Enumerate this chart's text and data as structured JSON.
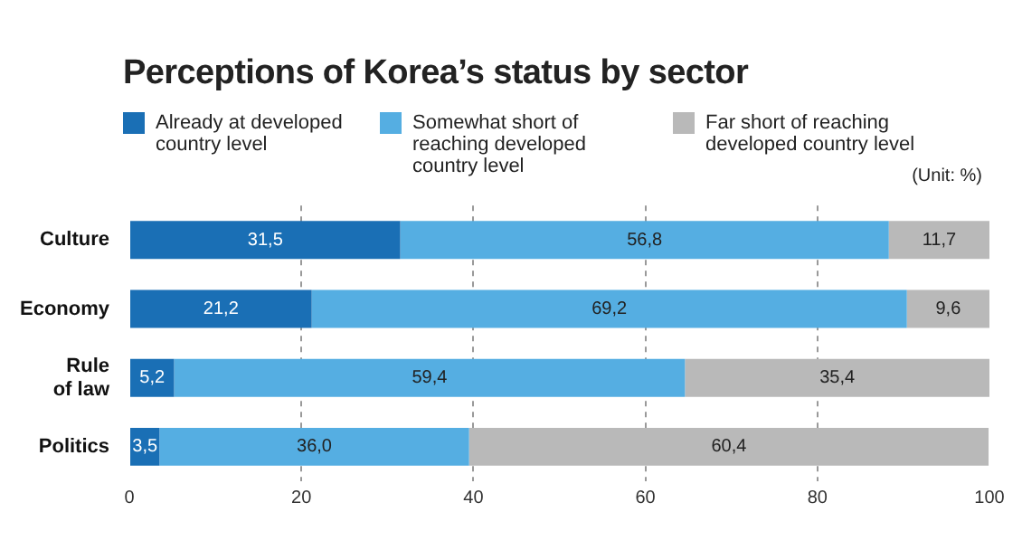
{
  "chart_data": {
    "type": "bar",
    "orientation": "horizontal",
    "stacked": true,
    "title": "Perceptions of Korea’s status by sector",
    "categories": [
      "Culture",
      "Economy",
      "Rule of law",
      "Politics"
    ],
    "series": [
      {
        "name": "Already at developed country level",
        "color": "#1a6fb5",
        "values": [
          31.5,
          21.2,
          5.2,
          3.5
        ],
        "value_labels": [
          "31,5",
          "21,2",
          "5,2",
          "3,5"
        ]
      },
      {
        "name": "Somewhat short of reaching developed country level",
        "color": "#55aee2",
        "values": [
          56.8,
          69.2,
          59.4,
          36.0
        ],
        "value_labels": [
          "56,8",
          "69,2",
          "59,4",
          "36,0"
        ]
      },
      {
        "name": "Far short of reaching developed country level",
        "color": "#b9b9b9",
        "values": [
          11.7,
          9.6,
          35.4,
          60.4
        ],
        "value_labels": [
          "11,7",
          "9,6",
          "35,4",
          "60,4"
        ]
      }
    ],
    "xlim": [
      0,
      100
    ],
    "xticks": [
      0,
      20,
      40,
      60,
      80,
      100
    ],
    "grid": "x",
    "legend": "top left",
    "annotations": [
      "(Unit: %)"
    ]
  }
}
